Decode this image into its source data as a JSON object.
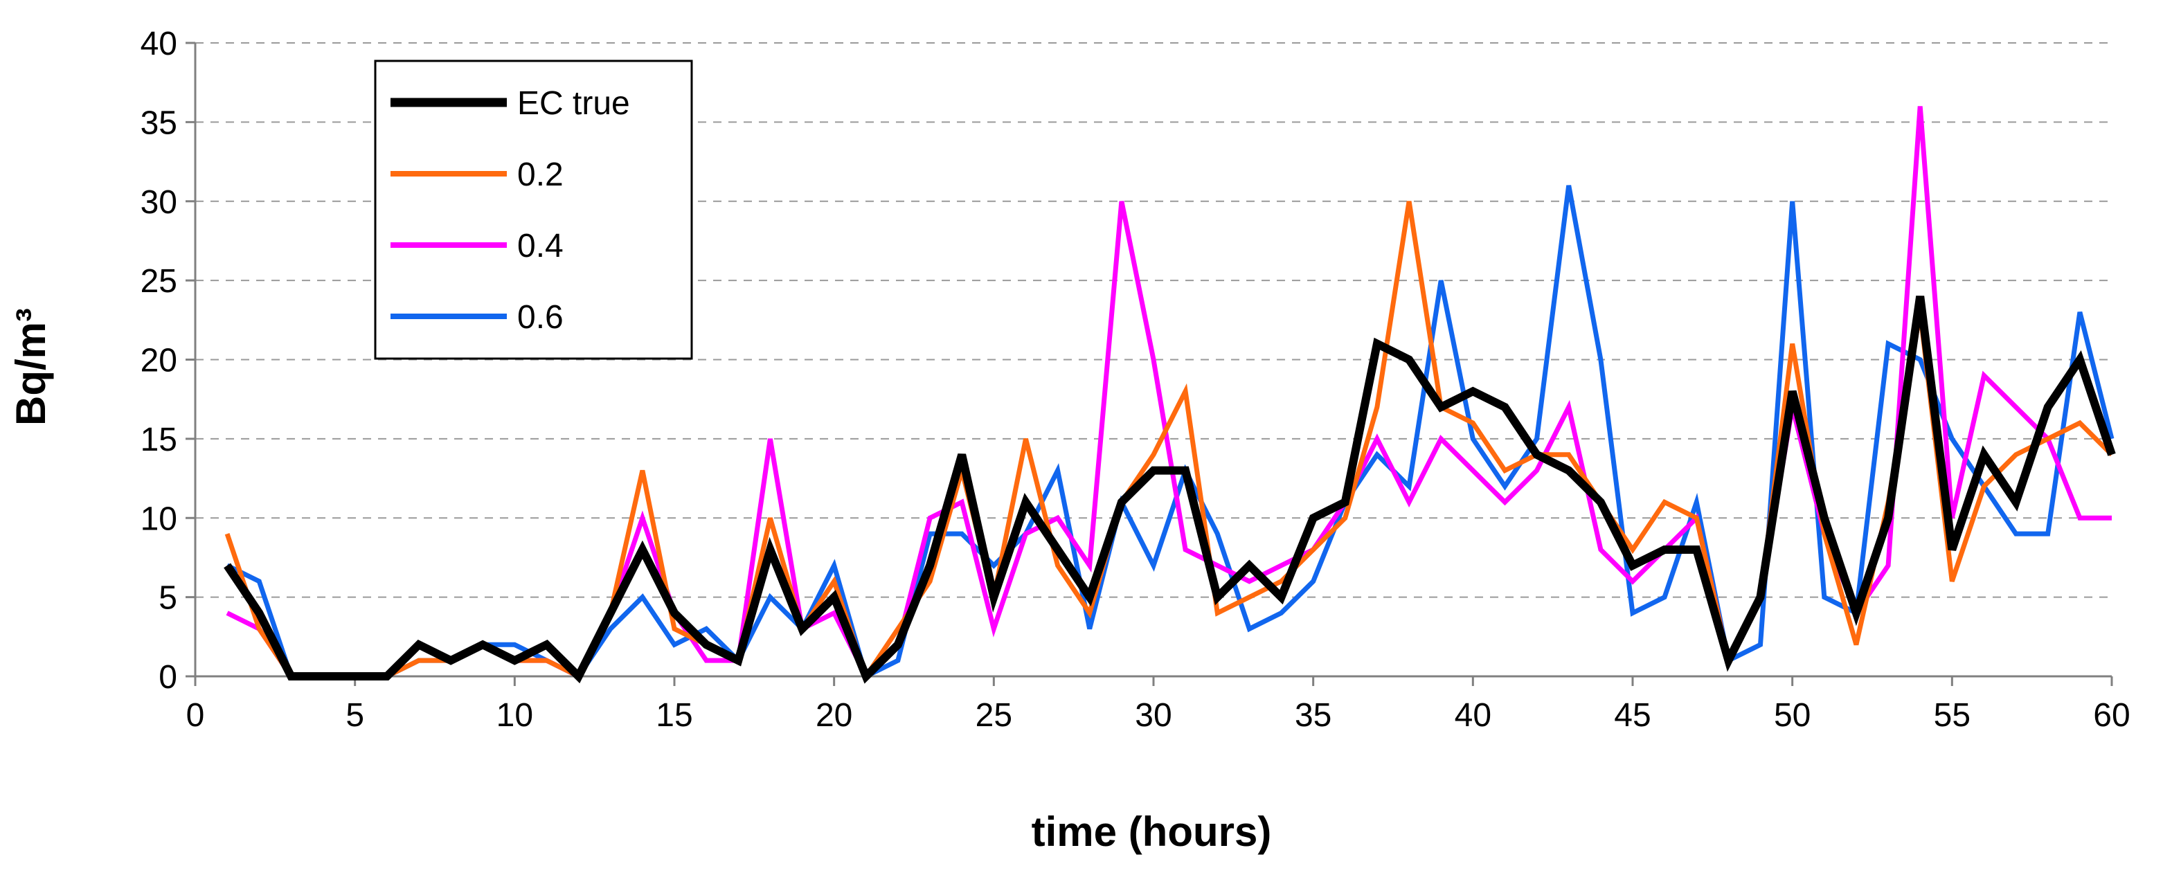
{
  "chart_data": {
    "type": "line",
    "xlabel": "time (hours)",
    "ylabel": "Bq/m³",
    "xlim": [
      0,
      60
    ],
    "ylim": [
      0,
      40
    ],
    "xticks": [
      0,
      5,
      10,
      15,
      20,
      25,
      30,
      35,
      40,
      45,
      50,
      55,
      60
    ],
    "yticks": [
      0,
      5,
      10,
      15,
      20,
      25,
      30,
      35,
      40
    ],
    "grid": "horizontal-dashed",
    "legend_position": "top-left",
    "x": [
      1,
      2,
      3,
      4,
      5,
      6,
      7,
      8,
      9,
      10,
      11,
      12,
      13,
      14,
      15,
      16,
      17,
      18,
      19,
      20,
      21,
      22,
      23,
      24,
      25,
      26,
      27,
      28,
      29,
      30,
      31,
      32,
      33,
      34,
      35,
      36,
      37,
      38,
      39,
      40,
      41,
      42,
      43,
      44,
      45,
      46,
      47,
      48,
      49,
      50,
      51,
      52,
      53,
      54,
      55,
      56,
      57,
      58,
      59,
      60
    ],
    "series": [
      {
        "name": "EC true",
        "color": "#000000",
        "values": [
          7,
          4,
          0,
          0,
          0,
          0,
          2,
          1,
          2,
          1,
          2,
          0,
          4,
          8,
          4,
          2,
          1,
          8,
          3,
          5,
          0,
          2,
          7,
          14,
          5,
          11,
          8,
          5,
          11,
          13,
          13,
          5,
          7,
          5,
          10,
          11,
          21,
          20,
          17,
          18,
          17,
          14,
          13,
          11,
          7,
          8,
          8,
          1,
          5,
          18,
          10,
          4,
          10,
          24,
          8,
          14,
          11,
          17,
          20,
          14
        ]
      },
      {
        "name": "0.2",
        "color": "#FF6A0E",
        "values": [
          9,
          3,
          0,
          0,
          0,
          0,
          1,
          1,
          2,
          1,
          1,
          0,
          4,
          13,
          3,
          2,
          1,
          10,
          3,
          6,
          0,
          3,
          6,
          13,
          5,
          15,
          7,
          4,
          11,
          14,
          18,
          4,
          5,
          6,
          8,
          10,
          17,
          30,
          17,
          16,
          13,
          14,
          14,
          11,
          8,
          11,
          10,
          1,
          5,
          21,
          9,
          2,
          11,
          23,
          6,
          12,
          14,
          15,
          16,
          14
        ]
      },
      {
        "name": "0.4",
        "color": "#FF00FF",
        "values": [
          4,
          3,
          0,
          0,
          0,
          0,
          2,
          1,
          2,
          1,
          1,
          0,
          4,
          10,
          4,
          1,
          1,
          15,
          3,
          4,
          0,
          2,
          10,
          11,
          3,
          9,
          10,
          7,
          30,
          20,
          8,
          7,
          6,
          7,
          8,
          11,
          15,
          11,
          15,
          13,
          11,
          13,
          17,
          8,
          6,
          8,
          10,
          1,
          5,
          17,
          9,
          4,
          7,
          36,
          10,
          19,
          17,
          15,
          10,
          10
        ]
      },
      {
        "name": "0.6",
        "color": "#1166EE",
        "values": [
          7,
          6,
          0,
          0,
          0,
          0,
          1,
          1,
          2,
          2,
          1,
          0,
          3,
          5,
          2,
          3,
          1,
          5,
          3,
          7,
          0,
          1,
          9,
          9,
          7,
          9,
          13,
          3,
          11,
          7,
          13,
          9,
          3,
          4,
          6,
          11,
          14,
          12,
          25,
          15,
          12,
          15,
          31,
          20,
          4,
          5,
          11,
          1,
          2,
          30,
          5,
          4,
          21,
          20,
          15,
          12,
          9,
          9,
          23,
          15
        ]
      }
    ]
  }
}
